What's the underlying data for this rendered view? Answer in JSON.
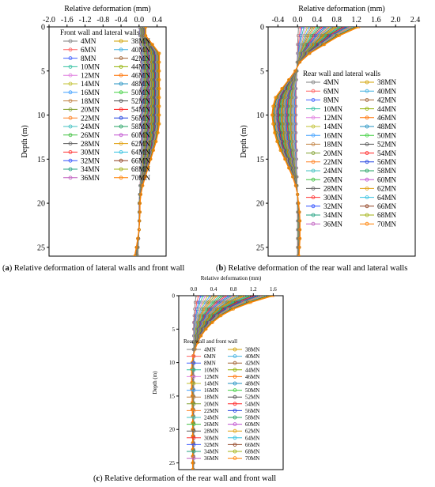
{
  "captions": [
    {
      "label": "a",
      "text": "Relative deformation of lateral walls and front wall"
    },
    {
      "label": "b",
      "text": "Relative deformation of the rear wall and lateral walls"
    },
    {
      "label": "c",
      "text": "Relative deformation of the rear wall and front wall"
    }
  ],
  "loads": [
    "4MN",
    "6MN",
    "8MN",
    "10MN",
    "12MN",
    "14MN",
    "16MN",
    "18MN",
    "20MN",
    "22MN",
    "24MN",
    "26MN",
    "28MN",
    "30MN",
    "32MN",
    "34MN",
    "36MN",
    "38MN",
    "40MN",
    "42MN",
    "44MN",
    "46MN",
    "48MN",
    "50MN",
    "52MN",
    "54MN",
    "56MN",
    "58MN",
    "60MN",
    "62MN",
    "64MN",
    "66MN",
    "68MN",
    "70MN"
  ],
  "colors": [
    "#808080",
    "#ff6060",
    "#4060ff",
    "#30c0a0",
    "#e080e0",
    "#c0c030",
    "#40a0ff",
    "#c08040",
    "#80a030",
    "#ff8020",
    "#40c0c0",
    "#40c040",
    "#606060",
    "#ff3030",
    "#3050ff",
    "#20a080",
    "#c060c0",
    "#d0a000",
    "#40b0e0",
    "#a06030",
    "#90b000",
    "#ff7000",
    "#2090c0",
    "#40d040",
    "#505050",
    "#ff2020",
    "#2040e0",
    "#20a060",
    "#c050d0",
    "#e0a010",
    "#30c0e0",
    "#904020",
    "#a0b010",
    "#ff8000"
  ],
  "chart_data": [
    {
      "type": "line",
      "id": "a",
      "xlabel": "Relative deformation (mm)",
      "ylabel": "Depth (m)",
      "xlim": [
        -2.0,
        0.6
      ],
      "ylim": [
        0,
        26
      ],
      "xticks": [
        -2.0,
        -1.6,
        -1.2,
        -0.8,
        -0.4,
        0.0,
        0.4
      ],
      "yticks": [
        0,
        5,
        10,
        15,
        20,
        25
      ],
      "legend_title": "Front wall and lateral walls",
      "legend_position": "upper-left",
      "y_inverted": true,
      "x_axis_top": true,
      "depth": [
        0,
        1,
        2,
        3,
        4,
        5,
        6,
        7,
        8,
        9,
        10,
        11,
        12,
        13,
        14,
        15,
        16,
        17,
        18,
        19,
        20,
        21,
        22,
        23,
        24,
        25,
        26
      ],
      "envelope_min_load": [
        0.0,
        0.02,
        0.04,
        0.05,
        0.05,
        0.05,
        0.05,
        0.05,
        0.05,
        0.05,
        0.05,
        0.05,
        0.05,
        0.05,
        0.05,
        0.04,
        0.04,
        0.03,
        0.02,
        0.01,
        0.0,
        0.0,
        0.0,
        0.0,
        -0.01,
        -0.02,
        -0.02
      ],
      "envelope_max_load": [
        0.15,
        0.15,
        0.3,
        0.45,
        0.45,
        0.45,
        0.45,
        0.45,
        0.45,
        0.45,
        0.45,
        0.45,
        0.42,
        0.38,
        0.32,
        0.26,
        0.2,
        0.14,
        0.08,
        0.04,
        0.02,
        0.02,
        0.01,
        0.0,
        -0.03,
        -0.06,
        -0.1
      ]
    },
    {
      "type": "line",
      "id": "b",
      "xlabel": "Relative deformation (mm)",
      "ylabel": "Depth (m)",
      "xlim": [
        -0.6,
        2.4
      ],
      "ylim": [
        0,
        26
      ],
      "xticks": [
        -0.4,
        0.0,
        0.4,
        0.8,
        1.2,
        1.6,
        2.0,
        2.4
      ],
      "yticks": [
        0,
        5,
        10,
        15,
        20,
        25
      ],
      "legend_title": "Rear wall and lateral walls",
      "legend_position": "right",
      "y_inverted": true,
      "x_axis_top": true,
      "depth": [
        0,
        1,
        2,
        3,
        4,
        5,
        6,
        7,
        8,
        9,
        10,
        11,
        12,
        13,
        14,
        15,
        16,
        17,
        18,
        19,
        20,
        21,
        22,
        23,
        24,
        25,
        26
      ],
      "envelope_min_load": [
        0.02,
        0.01,
        0.0,
        0.0,
        -0.01,
        -0.01,
        -0.02,
        -0.03,
        -0.03,
        -0.03,
        -0.03,
        -0.03,
        -0.03,
        -0.03,
        -0.02,
        -0.02,
        -0.02,
        -0.01,
        -0.01,
        0.0,
        0.0,
        0.0,
        0.0,
        0.0,
        0.0,
        0.0,
        0.0
      ],
      "envelope_max_load": [
        1.25,
        0.85,
        0.55,
        0.25,
        0.05,
        -0.05,
        -0.18,
        -0.32,
        -0.45,
        -0.5,
        -0.52,
        -0.5,
        -0.47,
        -0.42,
        -0.35,
        -0.26,
        -0.18,
        -0.1,
        -0.04,
        0.0,
        0.02,
        0.04,
        0.05,
        0.05,
        0.05,
        0.04,
        0.03
      ]
    },
    {
      "type": "line",
      "id": "c",
      "xlabel": "Relative deformation (mm)",
      "ylabel": "Depth (m)",
      "xlim": [
        -0.3,
        1.8
      ],
      "ylim": [
        0,
        26
      ],
      "xticks": [
        0.0,
        0.4,
        0.8,
        1.2,
        1.6
      ],
      "yticks": [
        0,
        5,
        10,
        15,
        20,
        25
      ],
      "legend_title": "Rear wall and front wall",
      "legend_position": "center-left",
      "y_inverted": true,
      "x_axis_top": true,
      "depth": [
        0,
        1,
        2,
        3,
        4,
        5,
        6,
        7,
        8,
        9,
        10,
        11,
        12,
        13,
        14,
        15,
        16,
        17,
        18,
        19,
        20,
        21,
        22,
        23,
        24,
        25,
        26
      ],
      "envelope_min_load": [
        0.05,
        0.03,
        0.02,
        0.01,
        0.0,
        0.0,
        0.0,
        0.0,
        0.0,
        0.0,
        0.0,
        0.0,
        0.0,
        0.0,
        0.0,
        0.0,
        0.0,
        0.0,
        0.0,
        0.0,
        0.0,
        0.0,
        0.0,
        0.0,
        0.0,
        0.0,
        0.0
      ],
      "envelope_max_load": [
        1.6,
        1.15,
        0.8,
        0.55,
        0.38,
        0.25,
        0.15,
        0.08,
        0.03,
        -0.01,
        -0.03,
        -0.04,
        -0.04,
        -0.04,
        -0.04,
        -0.03,
        -0.03,
        -0.03,
        -0.02,
        -0.02,
        -0.02,
        -0.02,
        -0.02,
        -0.02,
        -0.02,
        -0.02,
        -0.02
      ]
    }
  ]
}
